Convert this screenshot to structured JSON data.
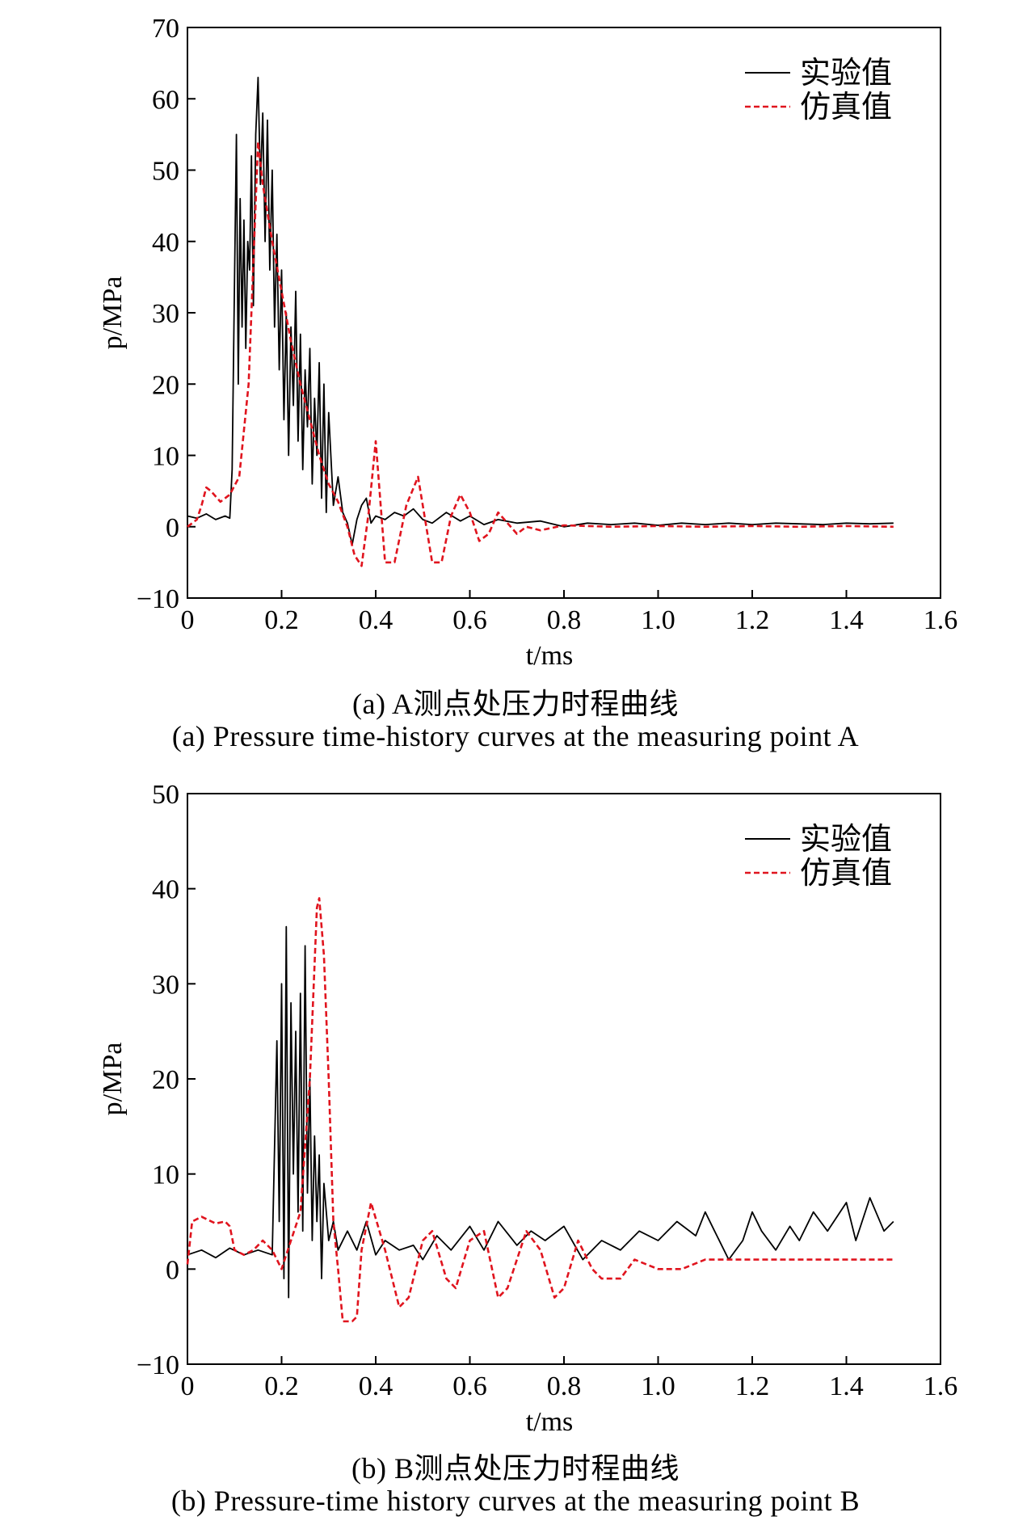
{
  "chart_data": [
    {
      "type": "line",
      "caption_cn": "(a) A测点处压力时程曲线",
      "caption_en": "(a) Pressure time-history curves at the measuring point A",
      "xlabel": "t/ms",
      "ylabel": "p/MPa",
      "xlim": [
        0,
        1.6
      ],
      "ylim": [
        -10,
        70
      ],
      "xticks": [
        "0",
        "0.2",
        "0.4",
        "0.6",
        "0.8",
        "1.0",
        "1.2",
        "1.4",
        "1.6"
      ],
      "yticks": [
        "−10",
        "0",
        "10",
        "20",
        "30",
        "40",
        "50",
        "60",
        "70"
      ],
      "grid": false,
      "legend_position": "top-right",
      "series": [
        {
          "name": "实验值",
          "color": "#000000",
          "style": "solid",
          "x": [
            0,
            0.02,
            0.04,
            0.06,
            0.08,
            0.09,
            0.095,
            0.1,
            0.104,
            0.108,
            0.112,
            0.116,
            0.12,
            0.124,
            0.128,
            0.132,
            0.136,
            0.14,
            0.145,
            0.15,
            0.155,
            0.16,
            0.165,
            0.17,
            0.175,
            0.18,
            0.185,
            0.19,
            0.195,
            0.2,
            0.205,
            0.21,
            0.215,
            0.22,
            0.225,
            0.23,
            0.235,
            0.24,
            0.245,
            0.25,
            0.255,
            0.26,
            0.265,
            0.27,
            0.275,
            0.28,
            0.285,
            0.29,
            0.295,
            0.3,
            0.31,
            0.32,
            0.33,
            0.34,
            0.35,
            0.36,
            0.37,
            0.38,
            0.39,
            0.4,
            0.42,
            0.44,
            0.46,
            0.48,
            0.5,
            0.52,
            0.55,
            0.58,
            0.6,
            0.63,
            0.66,
            0.7,
            0.75,
            0.8,
            0.85,
            0.9,
            0.95,
            1.0,
            1.05,
            1.1,
            1.15,
            1.2,
            1.25,
            1.3,
            1.35,
            1.4,
            1.45,
            1.5
          ],
          "y": [
            1.5,
            1.2,
            1.8,
            1.0,
            1.5,
            1.2,
            8,
            35,
            55,
            20,
            46,
            28,
            43,
            25,
            40,
            36,
            52,
            31,
            55,
            63,
            48,
            58,
            40,
            57,
            36,
            50,
            28,
            41,
            22,
            36,
            15,
            30,
            10,
            28,
            17,
            33,
            12,
            27,
            8,
            22,
            14,
            25,
            6,
            18,
            10,
            23,
            4,
            20,
            2,
            16,
            3,
            7,
            2,
            0.5,
            -2.5,
            1,
            3,
            4,
            0.5,
            1.5,
            1,
            2,
            1.5,
            2.5,
            1,
            0.5,
            2,
            0.8,
            1.5,
            0.3,
            1,
            0.5,
            0.8,
            0,
            0.5,
            0.3,
            0.5,
            0.2,
            0.5,
            0.3,
            0.5,
            0.3,
            0.5,
            0.4,
            0.3,
            0.5,
            0.4,
            0.5
          ]
        },
        {
          "name": "仿真值",
          "color": "#e0141e",
          "style": "dashed",
          "x": [
            0,
            0.02,
            0.03,
            0.04,
            0.05,
            0.07,
            0.09,
            0.11,
            0.13,
            0.15,
            0.16,
            0.18,
            0.2,
            0.22,
            0.24,
            0.26,
            0.28,
            0.3,
            0.32,
            0.34,
            0.355,
            0.37,
            0.385,
            0.4,
            0.42,
            0.44,
            0.465,
            0.49,
            0.52,
            0.54,
            0.56,
            0.58,
            0.6,
            0.62,
            0.64,
            0.66,
            0.68,
            0.7,
            0.72,
            0.75,
            0.8,
            0.9,
            1.0,
            1.1,
            1.2,
            1.3,
            1.4,
            1.5
          ],
          "y": [
            0,
            1,
            3,
            5.5,
            5,
            3.5,
            4.5,
            7,
            20,
            54,
            48,
            40,
            33,
            26,
            20,
            15,
            10,
            6,
            3.5,
            0,
            -4,
            -5.5,
            2,
            12,
            -5,
            -5,
            3,
            7,
            -5,
            -5,
            1.5,
            4.5,
            2,
            -2,
            -1,
            2,
            0.5,
            -1,
            0,
            -0.5,
            0.2,
            0,
            0.1,
            0,
            0.1,
            0,
            0.1,
            0
          ]
        }
      ]
    },
    {
      "type": "line",
      "caption_cn": "(b) B测点处压力时程曲线",
      "caption_en": "(b) Pressure-time history curves at the measuring point B",
      "xlabel": "t/ms",
      "ylabel": "p/MPa",
      "xlim": [
        0,
        1.6
      ],
      "ylim": [
        -10,
        50
      ],
      "xticks": [
        "0",
        "0.2",
        "0.4",
        "0.6",
        "0.8",
        "1.0",
        "1.2",
        "1.4",
        "1.6"
      ],
      "yticks": [
        "−10",
        "0",
        "10",
        "20",
        "30",
        "40",
        "50"
      ],
      "grid": false,
      "legend_position": "top-right",
      "series": [
        {
          "name": "实验值",
          "color": "#000000",
          "style": "solid",
          "x": [
            0,
            0.03,
            0.06,
            0.09,
            0.12,
            0.15,
            0.18,
            0.19,
            0.195,
            0.2,
            0.205,
            0.21,
            0.215,
            0.22,
            0.225,
            0.23,
            0.235,
            0.24,
            0.245,
            0.25,
            0.255,
            0.26,
            0.265,
            0.27,
            0.275,
            0.28,
            0.285,
            0.29,
            0.3,
            0.31,
            0.32,
            0.34,
            0.36,
            0.38,
            0.4,
            0.42,
            0.45,
            0.48,
            0.5,
            0.53,
            0.56,
            0.6,
            0.63,
            0.66,
            0.7,
            0.73,
            0.76,
            0.8,
            0.84,
            0.88,
            0.92,
            0.96,
            1.0,
            1.04,
            1.08,
            1.1,
            1.12,
            1.15,
            1.18,
            1.2,
            1.22,
            1.25,
            1.28,
            1.3,
            1.33,
            1.36,
            1.4,
            1.42,
            1.45,
            1.48,
            1.5
          ],
          "y": [
            1.5,
            2,
            1.2,
            2.2,
            1.5,
            2,
            1.5,
            24,
            5,
            30,
            -1,
            36,
            -3,
            28,
            10,
            25,
            6,
            29,
            4,
            34,
            8,
            20,
            3,
            14,
            5,
            12,
            -1,
            9,
            3,
            5,
            2,
            4,
            2,
            5,
            1.5,
            3,
            2,
            2.5,
            1,
            3.5,
            2,
            4.5,
            2,
            5,
            2.5,
            4,
            3,
            4.5,
            1,
            3,
            2,
            4,
            3,
            5,
            3.5,
            6,
            4,
            1,
            3,
            6,
            4,
            2,
            4.5,
            3,
            6,
            4,
            7,
            3,
            7.5,
            4,
            5
          ]
        },
        {
          "name": "仿真值",
          "color": "#e0141e",
          "style": "dashed",
          "x": [
            0,
            0.01,
            0.03,
            0.06,
            0.08,
            0.09,
            0.1,
            0.12,
            0.14,
            0.16,
            0.18,
            0.2,
            0.22,
            0.24,
            0.26,
            0.275,
            0.28,
            0.29,
            0.3,
            0.31,
            0.32,
            0.33,
            0.35,
            0.36,
            0.37,
            0.39,
            0.42,
            0.45,
            0.47,
            0.5,
            0.52,
            0.55,
            0.57,
            0.6,
            0.63,
            0.66,
            0.68,
            0.72,
            0.75,
            0.78,
            0.8,
            0.83,
            0.86,
            0.88,
            0.92,
            0.95,
            1.0,
            1.05,
            1.1,
            1.15,
            1.2,
            1.3,
            1.4,
            1.5
          ],
          "y": [
            0.5,
            5,
            5.5,
            4.8,
            5,
            4.5,
            2,
            1.5,
            2,
            3,
            2,
            0,
            3,
            6,
            20,
            38,
            39,
            33,
            20,
            5,
            0,
            -5.5,
            -5.5,
            -5,
            2,
            7,
            2,
            -4,
            -3,
            3,
            4,
            -1,
            -2,
            3,
            4,
            -3,
            -2,
            4,
            2,
            -3,
            -2,
            3,
            0,
            -1,
            -1,
            1,
            0,
            0,
            1,
            1,
            1,
            1,
            1,
            1
          ]
        }
      ]
    }
  ]
}
